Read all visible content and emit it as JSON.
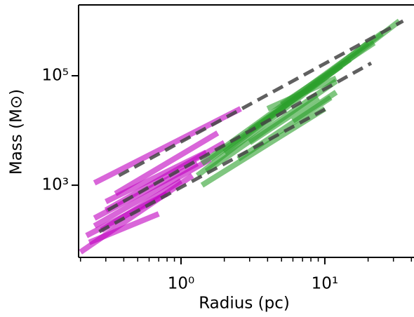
{
  "chart_data": {
    "type": "line",
    "xlabel": "Radius (pc)",
    "ylabel": "Mass (M⊙)",
    "xscale": "log",
    "yscale": "log",
    "xlim": [
      0.194,
      41.7
    ],
    "ylim": [
      48,
      1970000
    ],
    "xticks": [
      {
        "value": 1,
        "label": "10⁰"
      },
      {
        "value": 10,
        "label": "10¹"
      }
    ],
    "xminorticks": [
      0.2,
      0.3,
      0.4,
      0.5,
      0.6,
      0.7,
      0.8,
      0.9,
      2,
      3,
      4,
      5,
      6,
      7,
      8,
      9,
      20,
      30,
      40
    ],
    "yticks": [
      {
        "value": 1000,
        "label": "10³"
      },
      {
        "value": 100000,
        "label": "10⁵"
      }
    ],
    "series": [
      {
        "color": "#c000c0",
        "x": [
          0.25,
          2.6
        ],
        "values": [
          1100,
          25000
        ]
      },
      {
        "color": "#c000c0",
        "x": [
          0.3,
          1.5
        ],
        "values": [
          500,
          4000
        ]
      },
      {
        "color": "#c000c0",
        "x": [
          0.25,
          1.3
        ],
        "values": [
          250,
          2500
        ]
      },
      {
        "color": "#c000c0",
        "x": [
          0.2,
          1.2
        ],
        "values": [
          60,
          1500
        ]
      },
      {
        "color": "#c000c0",
        "x": [
          0.22,
          0.8
        ],
        "values": [
          120,
          700
        ]
      },
      {
        "color": "#c000c0",
        "x": [
          0.25,
          1.6
        ],
        "values": [
          180,
          3000
        ]
      },
      {
        "color": "#c000c0",
        "x": [
          0.3,
          2.0
        ],
        "values": [
          350,
          6000
        ]
      },
      {
        "color": "#c000c0",
        "x": [
          0.23,
          0.7
        ],
        "values": [
          90,
          300
        ]
      },
      {
        "color": "#c000c0",
        "x": [
          0.35,
          1.8
        ],
        "values": [
          700,
          9000
        ]
      },
      {
        "color": "#c000c0",
        "x": [
          0.28,
          1.0
        ],
        "values": [
          150,
          1200
        ]
      },
      {
        "color": "#2ca02c",
        "x": [
          1.3,
          33
        ],
        "values": [
          1500,
          1000000
        ]
      },
      {
        "color": "#2ca02c",
        "x": [
          1.4,
          25
        ],
        "values": [
          2500,
          600000
        ]
      },
      {
        "color": "#2ca02c",
        "x": [
          1.5,
          12
        ],
        "values": [
          1800,
          80000
        ]
      },
      {
        "color": "#2ca02c",
        "x": [
          1.6,
          13
        ],
        "values": [
          3000,
          150000
        ]
      },
      {
        "color": "#2ca02c",
        "x": [
          2,
          20
        ],
        "values": [
          4000,
          400000
        ]
      },
      {
        "color": "#2ca02c",
        "x": [
          3,
          15
        ],
        "values": [
          10000,
          200000
        ]
      },
      {
        "color": "#2ca02c",
        "x": [
          1.4,
          10
        ],
        "values": [
          1000,
          25000
        ]
      },
      {
        "color": "#2ca02c",
        "x": [
          3,
          9
        ],
        "values": [
          6000,
          40000
        ]
      },
      {
        "color": "#2ca02c",
        "x": [
          4,
          12
        ],
        "values": [
          25000,
          90000
        ]
      },
      {
        "color": "#2ca02c",
        "x": [
          5,
          22
        ],
        "values": [
          30000,
          400000
        ]
      },
      {
        "color": "#2ca02c",
        "x": [
          2.5,
          11
        ],
        "values": [
          3000,
          40000
        ]
      },
      {
        "color": "#2ca02c",
        "x": [
          6,
          12
        ],
        "values": [
          15000,
          50000
        ]
      },
      {
        "color": "#444444",
        "dashed": true,
        "x": [
          0.37,
          35
        ],
        "values": [
          1500,
          1000000
        ]
      },
      {
        "color": "#444444",
        "dashed": true,
        "x": [
          0.31,
          21
        ],
        "values": [
          350,
          170000
        ]
      },
      {
        "color": "#444444",
        "dashed": true,
        "x": [
          0.27,
          10.2
        ],
        "values": [
          142,
          25000
        ]
      }
    ]
  }
}
